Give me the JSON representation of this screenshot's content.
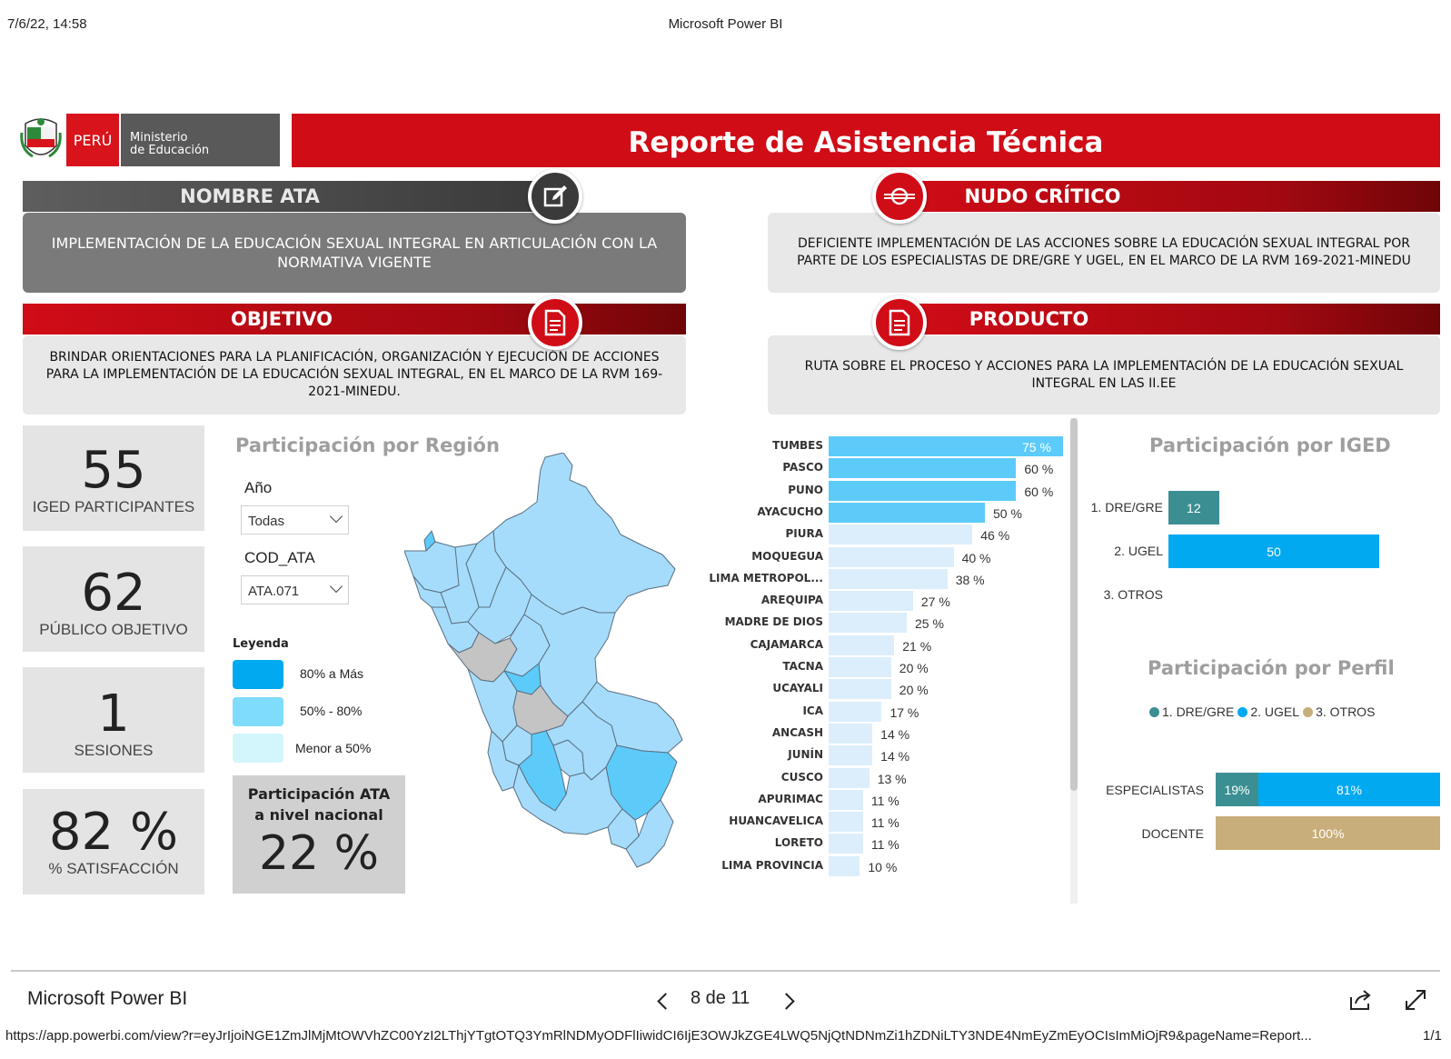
{
  "print": {
    "date": "7/6/22, 14:58",
    "title": "Microsoft Power BI",
    "url": "https://app.powerbi.com/view?r=eyJrIjoiNGE1ZmJlMjMtOWVhZC00YzI2LThjYTgtOTQ3YmRlNDMyODFlIiwidCI6IjE3OWJkZGE4LWQ5NjQtNDNmZi1hZDNiLTY3NDE4NmEyZmEyOCIsImMiOjR9&pageName=Report...",
    "page": "1/1"
  },
  "logo": {
    "brand": "PERÚ",
    "ministry_line1": "Ministerio",
    "ministry_line2": "de Educación"
  },
  "report_title": "Reporte de Asistencia Técnica",
  "sections": {
    "nombre_ata": {
      "title": "NOMBRE ATA",
      "text": "IMPLEMENTACIÓN DE LA EDUCACIÓN SEXUAL INTEGRAL EN ARTICULACIÓN CON LA NORMATIVA VIGENTE"
    },
    "nudo": {
      "title": "NUDO CRÍTICO",
      "text": "DEFICIENTE IMPLEMENTACIÓN DE LAS ACCIONES SOBRE LA EDUCACIÓN SEXUAL INTEGRAL POR PARTE DE LOS ESPECIALISTAS DE DRE/GRE Y UGEL, EN EL MARCO DE LA RVM 169-2021-MINEDU"
    },
    "objetivo": {
      "title": "OBJETIVO",
      "text": "BRINDAR ORIENTACIONES PARA LA PLANIFICACIÓN, ORGANIZACIÓN Y EJECUCIÓN DE ACCIONES PARA LA IMPLEMENTACIÓN DE LA EDUCACIÓN SEXUAL INTEGRAL, EN EL MARCO DE LA RVM 169-2021-MINEDU."
    },
    "producto": {
      "title": "PRODUCTO",
      "text": "RUTA SOBRE EL PROCESO Y ACCIONES PARA LA IMPLEMENTACIÓN DE LA EDUCACIÓN SEXUAL INTEGRAL EN LAS II.EE"
    }
  },
  "kpis": [
    {
      "value": "55",
      "label": "IGED PARTICIPANTES"
    },
    {
      "value": "62",
      "label": "PÚBLICO OBJETIVO"
    },
    {
      "value": "1",
      "label": "SESIONES"
    },
    {
      "value": "82 %",
      "label": "% SATISFACCIÓN"
    }
  ],
  "region_card": {
    "title": "Participación por Región",
    "slicer_year_label": "Año",
    "slicer_year_value": "Todas",
    "slicer_ata_label": "COD_ATA",
    "slicer_ata_value": "ATA.071",
    "legend_title": "Leyenda",
    "legend": [
      {
        "label": "80% a Más",
        "color": "#00a9f0"
      },
      {
        "label": "50% - 80%",
        "color": "#7fdcfb"
      },
      {
        "label": "Menor a 50%",
        "color": "#d3f6fd"
      }
    ],
    "national_label_1": "Participación ATA",
    "national_label_2": "a nivel nacional",
    "national_value": "22 %"
  },
  "chart_data": [
    {
      "type": "bar",
      "orientation": "horizontal",
      "categories": [
        "TUMBES",
        "PASCO",
        "PUNO",
        "AYACUCHO",
        "PIURA",
        "MOQUEGUA",
        "LIMA METROPOL...",
        "AREQUIPA",
        "MADRE DE DIOS",
        "CAJAMARCA",
        "TACNA",
        "UCAYALI",
        "ICA",
        "ANCASH",
        "JUNÍN",
        "CUSCO",
        "APURIMAC",
        "HUANCAVELICA",
        "LORETO",
        "LIMA PROVINCIA"
      ],
      "values": [
        75,
        60,
        60,
        50,
        46,
        40,
        38,
        27,
        25,
        21,
        20,
        20,
        17,
        14,
        14,
        13,
        11,
        11,
        11,
        10
      ],
      "labels": [
        "75 %",
        "60 %",
        "60 %",
        "50 %",
        "46 %",
        "40 %",
        "38 %",
        "27 %",
        "25 %",
        "21 %",
        "20 %",
        "20 %",
        "17 %",
        "14 %",
        "14 %",
        "13 %",
        "11 %",
        "11 %",
        "11 %",
        "10 %"
      ],
      "colors": {
        "high": "#5ccbfa",
        "low": "#dceefb"
      }
    },
    {
      "type": "bar",
      "orientation": "horizontal",
      "title": "Participación por IGED",
      "categories": [
        "1. DRE/GRE",
        "2. UGEL",
        "3. OTROS"
      ],
      "values": [
        12,
        50,
        0
      ],
      "labels": [
        "12",
        "50",
        ""
      ],
      "colors": [
        "#3b8f93",
        "#00a9f0",
        "#c8ae7a"
      ]
    },
    {
      "type": "bar",
      "orientation": "horizontal",
      "stacked": "100%",
      "title": "Participación por Perfil",
      "categories": [
        "ESPECIALISTAS",
        "DOCENTE"
      ],
      "series": [
        {
          "name": "1. DRE/GRE",
          "values": [
            19,
            0
          ],
          "color": "#3b8f93"
        },
        {
          "name": "2. UGEL",
          "values": [
            81,
            0
          ],
          "color": "#00a9f0"
        },
        {
          "name": "3. OTROS",
          "values": [
            0,
            100
          ],
          "color": "#c8ae7a"
        }
      ],
      "labels": [
        [
          "19%",
          "81%",
          ""
        ],
        [
          "",
          "",
          "100%"
        ]
      ]
    }
  ],
  "footer": {
    "brand": "Microsoft Power BI",
    "pager": "8 de 11"
  }
}
